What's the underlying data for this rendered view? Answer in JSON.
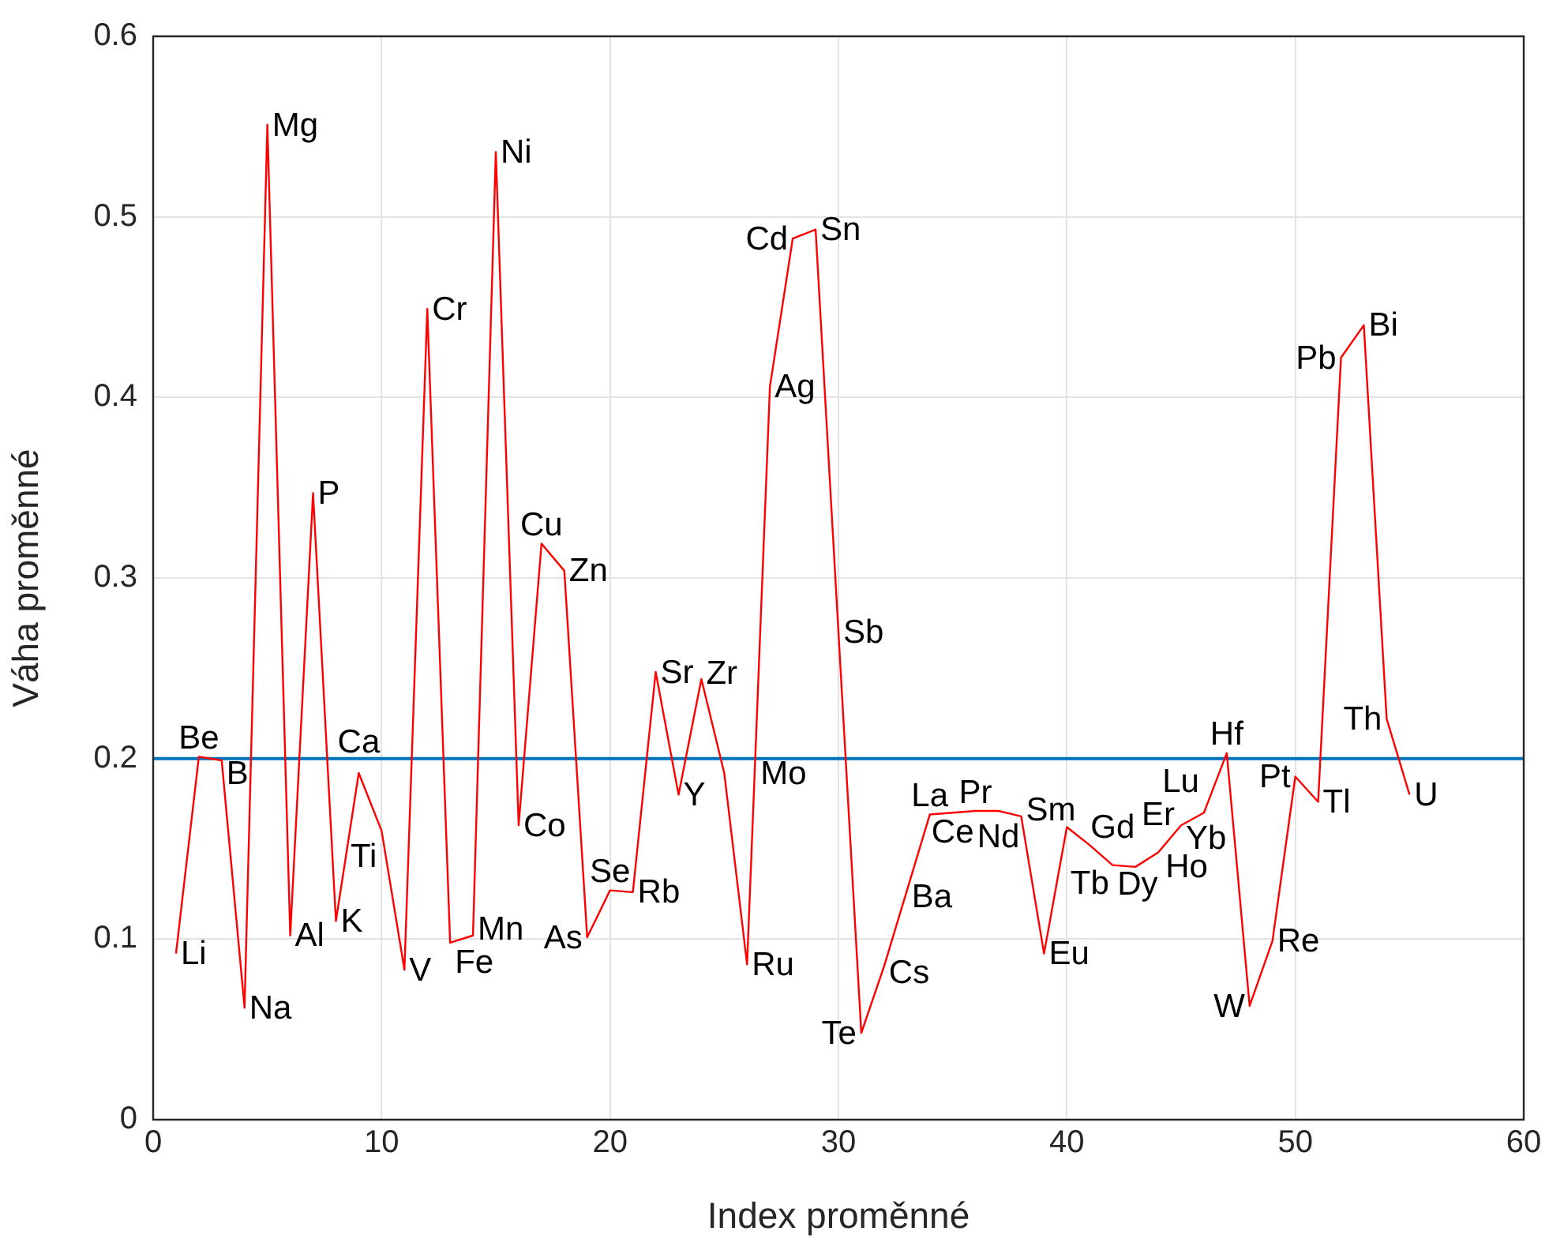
{
  "chart_data": {
    "type": "line",
    "xlabel": "Index proměnné",
    "ylabel": "Váha proměnné",
    "x": [
      1,
      2,
      3,
      4,
      5,
      6,
      7,
      8,
      9,
      10,
      11,
      12,
      13,
      14,
      15,
      16,
      17,
      18,
      19,
      20,
      21,
      22,
      23,
      24,
      25,
      26,
      27,
      28,
      29,
      30,
      31,
      32,
      33,
      34,
      35,
      36,
      37,
      38,
      39,
      40,
      41,
      42,
      43,
      44,
      45,
      46,
      47,
      48,
      49,
      50,
      51,
      52,
      53,
      54,
      55
    ],
    "series": [
      {
        "color": "#ff0000",
        "values": [
          0.092,
          0.201,
          0.199,
          0.062,
          0.551,
          0.102,
          0.347,
          0.11,
          0.192,
          0.16,
          0.083,
          0.449,
          0.098,
          0.102,
          0.536,
          0.163,
          0.319,
          0.304,
          0.101,
          0.127,
          0.126,
          0.248,
          0.18,
          0.244,
          0.192,
          0.086,
          0.406,
          0.488,
          0.493,
          0.27,
          0.048,
          0.085,
          0.127,
          0.169,
          0.17,
          0.171,
          0.171,
          0.168,
          0.092,
          0.162,
          0.152,
          0.141,
          0.14,
          0.148,
          0.163,
          0.17,
          0.203,
          0.063,
          0.099,
          0.19,
          0.176,
          0.422,
          0.44,
          0.222,
          0.18
        ]
      }
    ],
    "xlim": [
      0,
      60
    ],
    "xticks": [
      0,
      10,
      20,
      30,
      40,
      50,
      60
    ],
    "ylim": [
      0,
      0.6
    ],
    "yticks": [
      0,
      0.1,
      0.2,
      0.3,
      0.4,
      0.5,
      0.6
    ],
    "grid": true,
    "legend": false,
    "marker": "none",
    "line_style": "solid",
    "ref_lines": [
      {
        "axis": "y",
        "value": 0.2,
        "label": null,
        "color": "#0072bd"
      }
    ],
    "annotations": [
      {
        "text": "Li",
        "x": 1,
        "y": 0.092
      },
      {
        "text": "Be",
        "x": 2,
        "y": 0.201
      },
      {
        "text": "B",
        "x": 3,
        "y": 0.199
      },
      {
        "text": "Na",
        "x": 4,
        "y": 0.062
      },
      {
        "text": "Mg",
        "x": 5,
        "y": 0.551
      },
      {
        "text": "Al",
        "x": 6,
        "y": 0.102
      },
      {
        "text": "P",
        "x": 7,
        "y": 0.347
      },
      {
        "text": "K",
        "x": 8,
        "y": 0.11
      },
      {
        "text": "Ca",
        "x": 9,
        "y": 0.192
      },
      {
        "text": "Ti",
        "x": 10,
        "y": 0.16
      },
      {
        "text": "V",
        "x": 11,
        "y": 0.083
      },
      {
        "text": "Cr",
        "x": 12,
        "y": 0.449
      },
      {
        "text": "Fe",
        "x": 13,
        "y": 0.098
      },
      {
        "text": "Mn",
        "x": 14,
        "y": 0.102
      },
      {
        "text": "Ni",
        "x": 15,
        "y": 0.536
      },
      {
        "text": "Co",
        "x": 16,
        "y": 0.163
      },
      {
        "text": "Cu",
        "x": 17,
        "y": 0.319
      },
      {
        "text": "Zn",
        "x": 18,
        "y": 0.304
      },
      {
        "text": "As",
        "x": 19,
        "y": 0.101
      },
      {
        "text": "Se",
        "x": 20,
        "y": 0.127
      },
      {
        "text": "Rb",
        "x": 21,
        "y": 0.126
      },
      {
        "text": "Sr",
        "x": 22,
        "y": 0.248
      },
      {
        "text": "Y",
        "x": 23,
        "y": 0.18
      },
      {
        "text": "Zr",
        "x": 24,
        "y": 0.244
      },
      {
        "text": "Mo",
        "x": 25,
        "y": 0.192
      },
      {
        "text": "Ru",
        "x": 26,
        "y": 0.086
      },
      {
        "text": "Ag",
        "x": 27,
        "y": 0.406
      },
      {
        "text": "Cd",
        "x": 28,
        "y": 0.488
      },
      {
        "text": "Sn",
        "x": 29,
        "y": 0.493
      },
      {
        "text": "Sb",
        "x": 30,
        "y": 0.27
      },
      {
        "text": "Te",
        "x": 31,
        "y": 0.048
      },
      {
        "text": "Cs",
        "x": 32,
        "y": 0.085
      },
      {
        "text": "Ba",
        "x": 33,
        "y": 0.127
      },
      {
        "text": "La",
        "x": 34,
        "y": 0.169
      },
      {
        "text": "Ce",
        "x": 35,
        "y": 0.17
      },
      {
        "text": "Pr",
        "x": 36,
        "y": 0.171
      },
      {
        "text": "Nd",
        "x": 37,
        "y": 0.171
      },
      {
        "text": "Sm",
        "x": 38,
        "y": 0.168
      },
      {
        "text": "Eu",
        "x": 39,
        "y": 0.092
      },
      {
        "text": "Gd",
        "x": 40,
        "y": 0.162
      },
      {
        "text": "Tb",
        "x": 41,
        "y": 0.152
      },
      {
        "text": "Dy",
        "x": 42,
        "y": 0.141
      },
      {
        "text": "Ho",
        "x": 43,
        "y": 0.14
      },
      {
        "text": "Er",
        "x": 44,
        "y": 0.148
      },
      {
        "text": "Yb",
        "x": 45,
        "y": 0.163
      },
      {
        "text": "Lu",
        "x": 46,
        "y": 0.17
      },
      {
        "text": "Hf",
        "x": 47,
        "y": 0.203
      },
      {
        "text": "W",
        "x": 48,
        "y": 0.063
      },
      {
        "text": "Re",
        "x": 49,
        "y": 0.099
      },
      {
        "text": "Pt",
        "x": 50,
        "y": 0.19
      },
      {
        "text": "Tl",
        "x": 51,
        "y": 0.176
      },
      {
        "text": "Pb",
        "x": 52,
        "y": 0.422
      },
      {
        "text": "Bi",
        "x": 53,
        "y": 0.44
      },
      {
        "text": "Th",
        "x": 54,
        "y": 0.222
      },
      {
        "text": "U",
        "x": 55,
        "y": 0.18
      }
    ]
  }
}
